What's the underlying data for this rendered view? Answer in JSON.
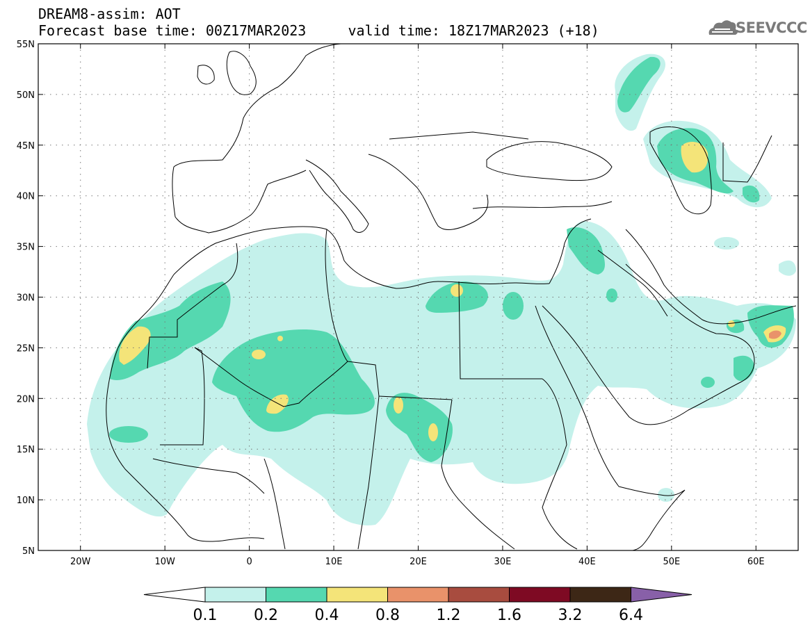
{
  "header": {
    "line1": "DREAM8-assim: AOT",
    "line2": "Forecast base time: 00Z17MAR2023     valid time: 18Z17MAR2023 (+18)"
  },
  "logo": {
    "text": "SEEVCCC",
    "icon": "cloud-icon"
  },
  "map": {
    "lon_range": [
      -25,
      65
    ],
    "lat_range": [
      5,
      55
    ],
    "gridlines": "dotted",
    "x_ticks": [
      {
        "value": -20,
        "label": "20W"
      },
      {
        "value": -10,
        "label": "10W"
      },
      {
        "value": 0,
        "label": "0"
      },
      {
        "value": 10,
        "label": "10E"
      },
      {
        "value": 20,
        "label": "20E"
      },
      {
        "value": 30,
        "label": "30E"
      },
      {
        "value": 40,
        "label": "40E"
      },
      {
        "value": 50,
        "label": "50E"
      },
      {
        "value": 60,
        "label": "60E"
      }
    ],
    "y_ticks": [
      {
        "value": 5,
        "label": "5N"
      },
      {
        "value": 10,
        "label": "10N"
      },
      {
        "value": 15,
        "label": "15N"
      },
      {
        "value": 20,
        "label": "20N"
      },
      {
        "value": 25,
        "label": "25N"
      },
      {
        "value": 30,
        "label": "30N"
      },
      {
        "value": 35,
        "label": "35N"
      },
      {
        "value": 40,
        "label": "40N"
      },
      {
        "value": 45,
        "label": "45N"
      },
      {
        "value": 50,
        "label": "50N"
      },
      {
        "value": 55,
        "label": "55N"
      }
    ]
  },
  "colorbar": {
    "colors": [
      "#c4f1eb",
      "#55d8b0",
      "#f4e479",
      "#e9926a",
      "#a84c3f",
      "#7e0a23",
      "#3d2716",
      "#8860a8"
    ],
    "labels": [
      "0.1",
      "0.2",
      "0.4",
      "0.8",
      "1.2",
      "1.6",
      "3.2",
      "6.4"
    ]
  }
}
